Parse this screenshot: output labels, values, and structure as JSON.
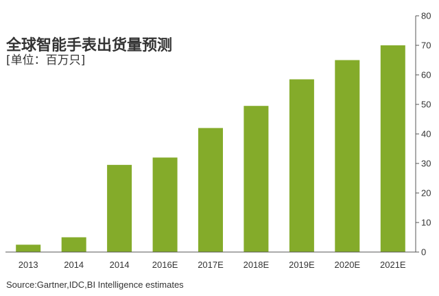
{
  "chart_data": {
    "type": "bar",
    "title": "全球智能手表出货量预测",
    "subtitle": "[单位：百万只]",
    "categories": [
      "2013",
      "2014",
      "2014",
      "2016E",
      "2017E",
      "2018E",
      "2019E",
      "2020E",
      "2021E"
    ],
    "values": [
      2.5,
      5,
      29.5,
      32,
      42,
      49.5,
      58.5,
      65,
      70
    ],
    "ylim": [
      0,
      80
    ],
    "yticks": [
      "0",
      "10",
      "20",
      "30",
      "40",
      "50",
      "60",
      "70",
      "80"
    ],
    "y_axis_side": "right",
    "grid": false,
    "bar_color": "#84ab2a",
    "source": "Source:Gartner,IDC,BI Intelligence estimates"
  }
}
